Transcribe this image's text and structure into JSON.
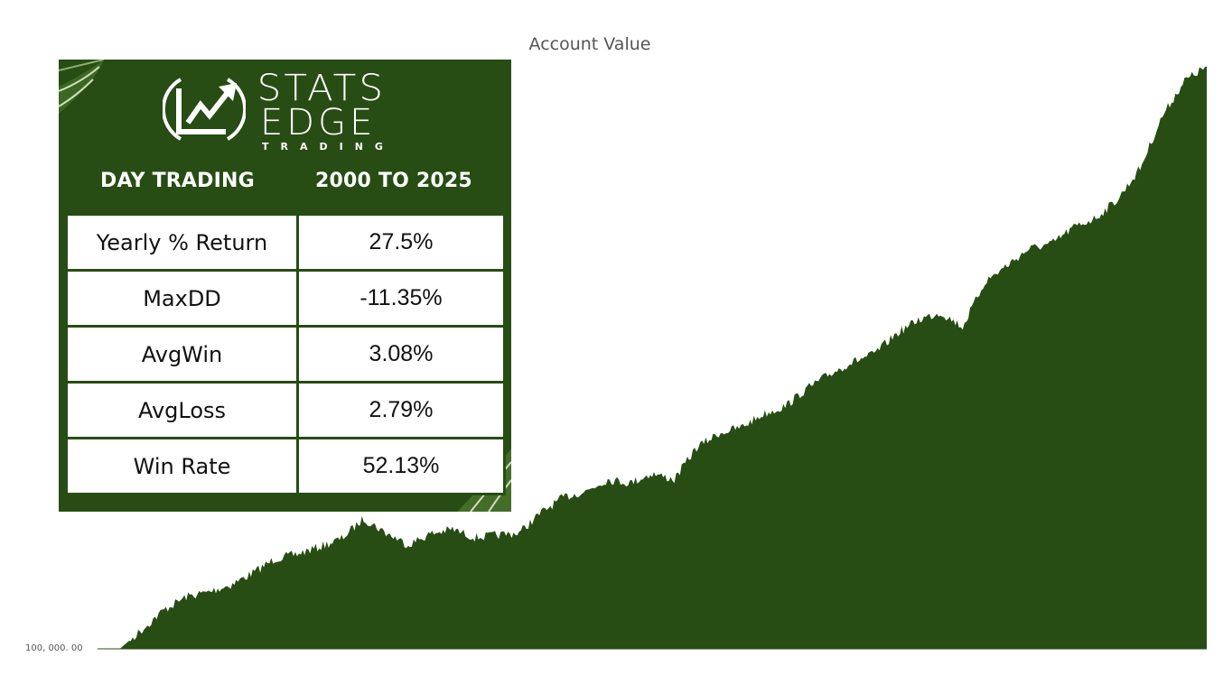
{
  "chart_data": {
    "type": "area",
    "title": "Account Value",
    "xlabel": "",
    "ylabel": "",
    "y_tick_labels": [
      "100, 000. 00"
    ],
    "y_baseline": 100000,
    "ylim": [
      100000,
      5200000
    ],
    "color": "#274d14",
    "x_range": [
      "2000",
      "2025"
    ],
    "series": [
      {
        "x": [
          0,
          2,
          3,
          4,
          6,
          8,
          10,
          12,
          14,
          16,
          18,
          20,
          22,
          24,
          26,
          28,
          30,
          32,
          34,
          36,
          38,
          40,
          42,
          44,
          46,
          48,
          50,
          52,
          54,
          56,
          58,
          60,
          62,
          64,
          66,
          68,
          70,
          72,
          74,
          76,
          78,
          80,
          82,
          84,
          86,
          88,
          90,
          92,
          94,
          96,
          98,
          100
        ],
        "values": [
          100000,
          100000,
          180000,
          260000,
          430000,
          540000,
          580000,
          640000,
          740000,
          860000,
          900000,
          960000,
          1030000,
          1200000,
          1080000,
          980000,
          1070000,
          1110000,
          1040000,
          1060000,
          1080000,
          1250000,
          1380000,
          1430000,
          1530000,
          1500000,
          1580000,
          1530000,
          1800000,
          1920000,
          1970000,
          2080000,
          2150000,
          2300000,
          2420000,
          2520000,
          2590000,
          2760000,
          2880000,
          2940000,
          2820000,
          3200000,
          3340000,
          3480000,
          3520000,
          3660000,
          3740000,
          3900000,
          4160000,
          4600000,
          4900000,
          5020000
        ]
      }
    ]
  },
  "panel": {
    "brand_line1": "STATS",
    "brand_line2": "EDGE",
    "brand_line3": "TRADING",
    "header_left": "DAY TRADING",
    "header_right": "2000 TO 2025",
    "accent": "#274d14",
    "rows": [
      {
        "label": "Yearly % Return",
        "value": "27.5%"
      },
      {
        "label": "MaxDD",
        "value": "-11.35%"
      },
      {
        "label": "AvgWin",
        "value": "3.08%"
      },
      {
        "label": "AvgLoss",
        "value": "2.79%"
      },
      {
        "label": "Win Rate",
        "value": "52.13%"
      }
    ]
  }
}
